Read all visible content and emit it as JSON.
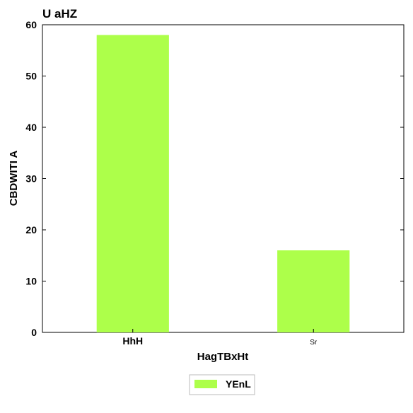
{
  "chart_data": {
    "type": "bar",
    "title": "U aHZ",
    "xlabel": "HagTBxHt",
    "ylabel": "CBDWITI A",
    "categories": [
      "HhH",
      "Sr"
    ],
    "series": [
      {
        "name": "YEnL",
        "values": [
          58,
          16
        ],
        "color": "#adff4a"
      }
    ],
    "ylim": [
      0,
      60
    ],
    "yticks": [
      0,
      10,
      20,
      30,
      40,
      50,
      60
    ],
    "grid": false,
    "legend_position": "bottom-center"
  }
}
